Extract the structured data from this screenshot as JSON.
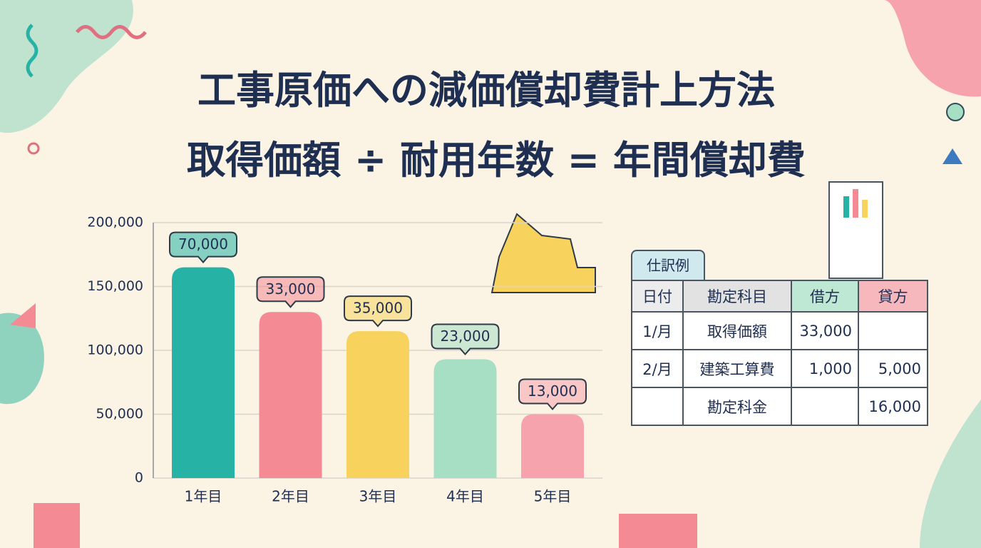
{
  "header": {
    "title": "工事原価への減価償却費計上方法",
    "formula": "取得価額 ÷ 耐用年数 = 年間償却費"
  },
  "chart_data": {
    "type": "bar",
    "categories": [
      "1年目",
      "2年目",
      "3年目",
      "4年目",
      "5年目"
    ],
    "values": [
      165000,
      130000,
      115000,
      93000,
      50000
    ],
    "annotations": [
      "70,000",
      "33,000",
      "35,000",
      "23,000",
      "13,000"
    ],
    "colors": [
      "#26b3a6",
      "#f48a94",
      "#f7d35e",
      "#a6dfc4",
      "#f7a3ad"
    ],
    "ylim": [
      0,
      200000
    ],
    "yticks": [
      0,
      {
        "value": 50000,
        "label": "50,000"
      },
      {
        "value": 100000,
        "label": "100,000"
      },
      {
        "value": 150000,
        "label": "150,000"
      },
      {
        "value": 200000,
        "label": "200,000"
      }
    ],
    "grid": true
  },
  "table": {
    "tab": "仕訳例",
    "header": [
      "日付",
      "勘定科目",
      "借方",
      "貸方"
    ],
    "rows": [
      [
        "1/月",
        "取得価額",
        "33,000",
        null
      ],
      [
        "2/月",
        "建築工算費",
        "1,000",
        "5,000"
      ],
      [
        null,
        "勘定科金",
        null,
        "16,000"
      ]
    ]
  }
}
